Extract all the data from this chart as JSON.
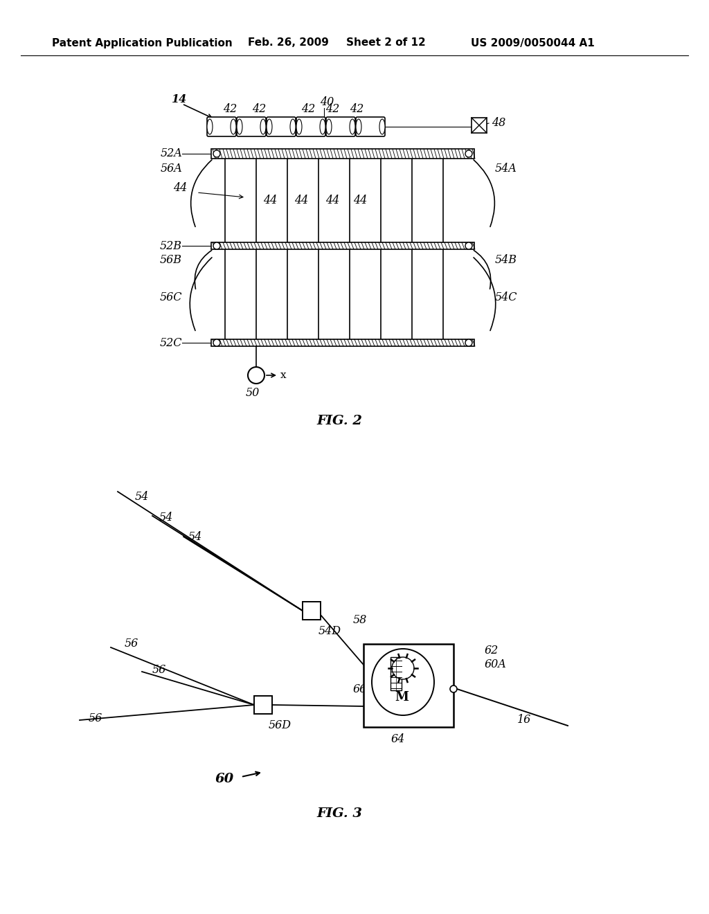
{
  "bg_color": "#ffffff",
  "header_left": "Patent Application Publication",
  "header_mid1": "Feb. 26, 2009",
  "header_mid2": "Sheet 2 of 12",
  "header_right": "US 2009/0050044 A1"
}
